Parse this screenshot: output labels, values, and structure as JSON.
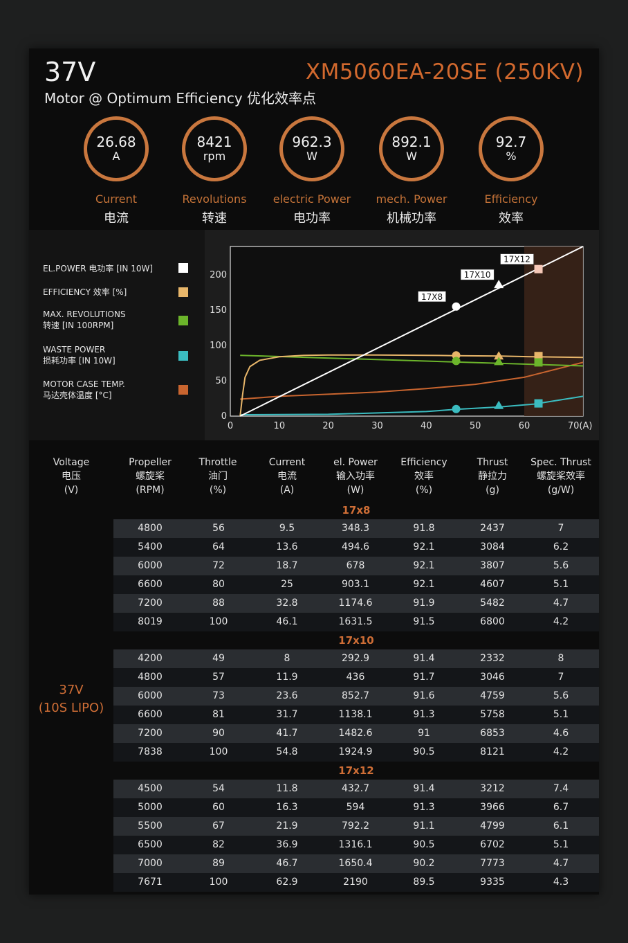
{
  "header": {
    "voltage": "37V",
    "model": "XM5060EA-20SE (250KV)",
    "subtitle": "Motor @ Optimum Efficiency  优化效率点"
  },
  "metrics": [
    {
      "value": "26.68",
      "unit": "A",
      "label_en": "Current",
      "label_cn": "电流"
    },
    {
      "value": "8421",
      "unit": "rpm",
      "label_en": "Revolutions",
      "label_cn": "转速"
    },
    {
      "value": "962.3",
      "unit": "W",
      "label_en": "electric Power",
      "label_cn": "电功率"
    },
    {
      "value": "892.1",
      "unit": "W",
      "label_en": "mech. Power",
      "label_cn": "机械功率"
    },
    {
      "value": "92.7",
      "unit": "%",
      "label_en": "Efficiency",
      "label_cn": "效率"
    }
  ],
  "legend": [
    {
      "line1": "EL.POWER 电功率 [IN 10W]",
      "line2": "",
      "color": "#ffffff"
    },
    {
      "line1": "EFFICIENCY 效率 [%]",
      "line2": "",
      "color": "#e8b66a"
    },
    {
      "line1": "MAX. REVOLUTIONS",
      "line2": "转速 [IN 100RPM]",
      "color": "#6cb52b"
    },
    {
      "line1": "WASTE POWER",
      "line2": "损耗功率 [IN 10W]",
      "color": "#3bbcc0"
    },
    {
      "line1": "MOTOR CASE TEMP.",
      "line2": "马达壳体温度 [°C]",
      "color": "#c9652f"
    }
  ],
  "chart_data": {
    "type": "line",
    "xlim": [
      0,
      72
    ],
    "ylim": [
      0,
      240
    ],
    "x_ticks": [
      "0",
      "10",
      "20",
      "30",
      "40",
      "50",
      "60",
      "70(A)"
    ],
    "x_tick_values": [
      0,
      10,
      20,
      30,
      40,
      50,
      60,
      70
    ],
    "y_ticks": [
      "0",
      "50",
      "100",
      "150",
      "200"
    ],
    "y_tick_values": [
      0,
      50,
      100,
      150,
      200
    ],
    "highlight_range": [
      60,
      72
    ],
    "series": [
      {
        "key": "el_power",
        "color": "#ffffff",
        "x": [
          2,
          72
        ],
        "y": [
          0,
          240
        ]
      },
      {
        "key": "efficiency",
        "color": "#e8b66a",
        "x": [
          2,
          2.5,
          3,
          4,
          6,
          10,
          15,
          20,
          30,
          40,
          46,
          55,
          62,
          72
        ],
        "y": [
          0,
          30,
          55,
          70,
          79,
          84,
          86,
          86.5,
          86.5,
          86,
          85.5,
          85,
          84,
          83
        ]
      },
      {
        "key": "max_revolutions",
        "color": "#6cb52b",
        "x": [
          2,
          72
        ],
        "y": [
          86,
          71
        ]
      },
      {
        "key": "waste_power",
        "color": "#3bbcc0",
        "x": [
          2,
          20,
          40,
          46,
          55,
          62,
          72
        ],
        "y": [
          2,
          2.5,
          6.5,
          9.5,
          13,
          17,
          28
        ]
      },
      {
        "key": "case_temp",
        "color": "#c9652f",
        "x": [
          2,
          10,
          20,
          30,
          40,
          50,
          60,
          72
        ],
        "y": [
          24,
          28,
          31,
          34,
          39,
          45,
          55,
          76
        ]
      }
    ],
    "annotations": [
      {
        "label": "17X8",
        "x": 46.1,
        "y": 155,
        "marker": "circle"
      },
      {
        "label": "17X10",
        "x": 54.8,
        "y": 186,
        "marker": "triangle"
      },
      {
        "label": "17X12",
        "x": 62.9,
        "y": 208,
        "marker": "square"
      }
    ],
    "markers": [
      {
        "x": 46.1,
        "y": 86,
        "color": "#e8b66a",
        "shape": "circle"
      },
      {
        "x": 46.1,
        "y": 78,
        "color": "#6cb52b",
        "shape": "circle"
      },
      {
        "x": 46.1,
        "y": 10,
        "color": "#3bbcc0",
        "shape": "circle"
      },
      {
        "x": 54.8,
        "y": 85,
        "color": "#e8b66a",
        "shape": "triangle"
      },
      {
        "x": 54.8,
        "y": 77,
        "color": "#6cb52b",
        "shape": "triangle"
      },
      {
        "x": 54.8,
        "y": 15,
        "color": "#3bbcc0",
        "shape": "triangle"
      },
      {
        "x": 62.9,
        "y": 85,
        "color": "#e8b66a",
        "shape": "square"
      },
      {
        "x": 62.9,
        "y": 76,
        "color": "#6cb52b",
        "shape": "square"
      },
      {
        "x": 62.9,
        "y": 18,
        "color": "#3bbcc0",
        "shape": "square"
      }
    ]
  },
  "table": {
    "headers": [
      {
        "en": "Voltage",
        "cn": "电压",
        "unit": "(V)"
      },
      {
        "en": "Propeller",
        "cn": "螺旋桨",
        "unit": "(RPM)"
      },
      {
        "en": "Throttle",
        "cn": "油门",
        "unit": "(%)"
      },
      {
        "en": "Current",
        "cn": "电流",
        "unit": "(A)"
      },
      {
        "en": "el. Power",
        "cn": "输入功率",
        "unit": "(W)"
      },
      {
        "en": "Efficiency",
        "cn": "效率",
        "unit": "(%)"
      },
      {
        "en": "Thrust",
        "cn": "静拉力",
        "unit": "(g)"
      },
      {
        "en": "Spec. Thrust",
        "cn": "螺旋桨效率",
        "unit": "(g/W)"
      }
    ],
    "voltage_line1": "37V",
    "voltage_line2": "(10S LIPO)",
    "sections": [
      {
        "title": "17x8",
        "rows": [
          [
            "4800",
            "56",
            "9.5",
            "348.3",
            "91.8",
            "2437",
            "7"
          ],
          [
            "5400",
            "64",
            "13.6",
            "494.6",
            "92.1",
            "3084",
            "6.2"
          ],
          [
            "6000",
            "72",
            "18.7",
            "678",
            "92.1",
            "3807",
            "5.6"
          ],
          [
            "6600",
            "80",
            "25",
            "903.1",
            "92.1",
            "4607",
            "5.1"
          ],
          [
            "7200",
            "88",
            "32.8",
            "1174.6",
            "91.9",
            "5482",
            "4.7"
          ],
          [
            "8019",
            "100",
            "46.1",
            "1631.5",
            "91.5",
            "6800",
            "4.2"
          ]
        ]
      },
      {
        "title": "17x10",
        "rows": [
          [
            "4200",
            "49",
            "8",
            "292.9",
            "91.4",
            "2332",
            "8"
          ],
          [
            "4800",
            "57",
            "11.9",
            "436",
            "91.7",
            "3046",
            "7"
          ],
          [
            "6000",
            "73",
            "23.6",
            "852.7",
            "91.6",
            "4759",
            "5.6"
          ],
          [
            "6600",
            "81",
            "31.7",
            "1138.1",
            "91.3",
            "5758",
            "5.1"
          ],
          [
            "7200",
            "90",
            "41.7",
            "1482.6",
            "91",
            "6853",
            "4.6"
          ],
          [
            "7838",
            "100",
            "54.8",
            "1924.9",
            "90.5",
            "8121",
            "4.2"
          ]
        ]
      },
      {
        "title": "17x12",
        "rows": [
          [
            "4500",
            "54",
            "11.8",
            "432.7",
            "91.4",
            "3212",
            "7.4"
          ],
          [
            "5000",
            "60",
            "16.3",
            "594",
            "91.3",
            "3966",
            "6.7"
          ],
          [
            "5500",
            "67",
            "21.9",
            "792.2",
            "91.1",
            "4799",
            "6.1"
          ],
          [
            "6500",
            "82",
            "36.9",
            "1316.1",
            "90.5",
            "6702",
            "5.1"
          ],
          [
            "7000",
            "89",
            "46.7",
            "1650.4",
            "90.2",
            "7773",
            "4.7"
          ],
          [
            "7671",
            "100",
            "62.9",
            "2190",
            "89.5",
            "9335",
            "4.3"
          ]
        ]
      }
    ]
  }
}
